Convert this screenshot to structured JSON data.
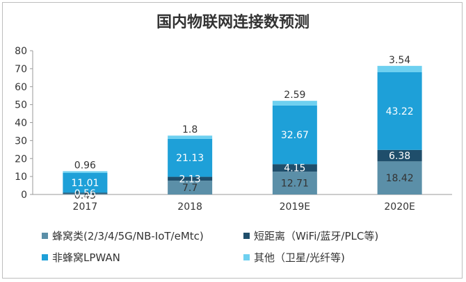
{
  "chart_data": {
    "type": "bar",
    "stacked": true,
    "title": "国内物联网连接数预测",
    "categories": [
      "2017",
      "2018",
      "2019E",
      "2020E"
    ],
    "series": [
      {
        "name": "蜂窝类(2/3/4/5G/NB-IoT/eMtc)",
        "color": "#5b8fa8",
        "values": [
          0.43,
          7.7,
          12.71,
          18.42
        ],
        "labels": [
          "0.43",
          "7.7",
          "12.71",
          "18.42"
        ]
      },
      {
        "name": "短距离（WiFi/蓝牙/PLC等)",
        "color": "#1f4e6b",
        "values": [
          0.56,
          2.13,
          4.15,
          6.38
        ],
        "labels": [
          "0.56",
          "2.13",
          "4.15",
          "6.38"
        ]
      },
      {
        "name": "非蜂窝LPWAN",
        "color": "#1ea0d8",
        "values": [
          11.01,
          21.13,
          32.67,
          43.22
        ],
        "labels": [
          "11.01",
          "21.13",
          "32.67",
          "43.22"
        ]
      },
      {
        "name": "其他（卫星/光纤等)",
        "color": "#6ed0f0",
        "values": [
          0.96,
          1.8,
          2.59,
          3.54
        ],
        "labels": [
          "0.96",
          "1.8",
          "2.59",
          "3.54"
        ]
      }
    ],
    "ylim": [
      0,
      80
    ],
    "yticks": [
      "0",
      "10",
      "20",
      "30",
      "40",
      "50",
      "60",
      "70",
      "80"
    ],
    "grid": false,
    "legend_position": "bottom"
  }
}
